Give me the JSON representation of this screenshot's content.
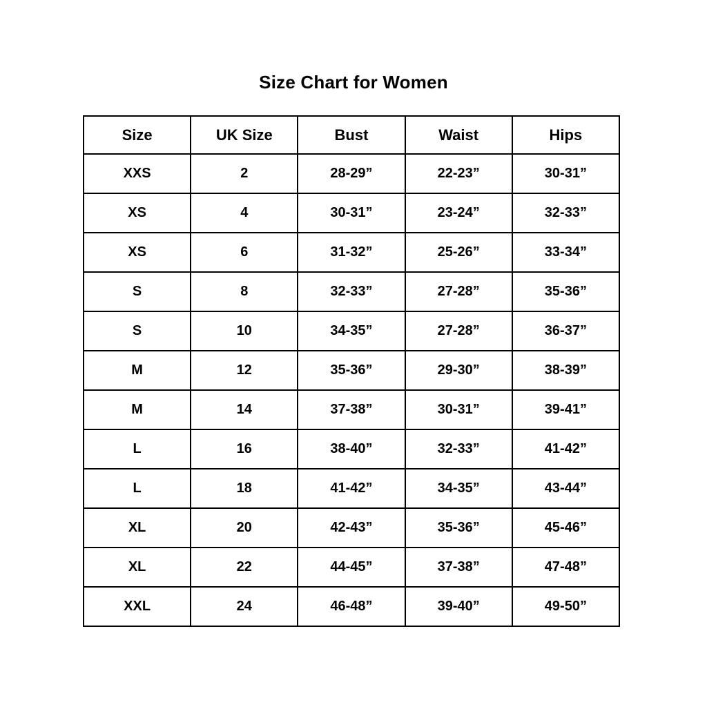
{
  "page": {
    "title": "Size Chart for Women"
  },
  "table": {
    "columns": [
      "Size",
      "UK Size",
      "Bust",
      "Waist",
      "Hips"
    ],
    "rows": [
      [
        "XXS",
        "2",
        "28-29”",
        "22-23”",
        "30-31”"
      ],
      [
        "XS",
        "4",
        "30-31”",
        "23-24”",
        "32-33”"
      ],
      [
        "XS",
        "6",
        "31-32”",
        "25-26”",
        "33-34”"
      ],
      [
        "S",
        "8",
        "32-33”",
        "27-28”",
        "35-36”"
      ],
      [
        "S",
        "10",
        "34-35”",
        "27-28”",
        "36-37”"
      ],
      [
        "M",
        "12",
        "35-36”",
        "29-30”",
        "38-39”"
      ],
      [
        "M",
        "14",
        "37-38”",
        "30-31”",
        "39-41”"
      ],
      [
        "L",
        "16",
        "38-40”",
        "32-33”",
        "41-42”"
      ],
      [
        "L",
        "18",
        "41-42”",
        "34-35”",
        "43-44”"
      ],
      [
        "XL",
        "20",
        "42-43”",
        "35-36”",
        "45-46”"
      ],
      [
        "XL",
        "22",
        "44-45”",
        "37-38”",
        "47-48”"
      ],
      [
        "XXL",
        "24",
        "46-48”",
        "39-40”",
        "49-50”"
      ]
    ]
  },
  "chart_data": {
    "type": "table",
    "title": "Size Chart for Women",
    "columns": [
      "Size",
      "UK Size",
      "Bust",
      "Waist",
      "Hips"
    ],
    "rows": [
      [
        "XXS",
        "2",
        "28-29”",
        "22-23”",
        "30-31”"
      ],
      [
        "XS",
        "4",
        "30-31”",
        "23-24”",
        "32-33”"
      ],
      [
        "XS",
        "6",
        "31-32”",
        "25-26”",
        "33-34”"
      ],
      [
        "S",
        "8",
        "32-33”",
        "27-28”",
        "35-36”"
      ],
      [
        "S",
        "10",
        "34-35”",
        "27-28”",
        "36-37”"
      ],
      [
        "M",
        "12",
        "35-36”",
        "29-30”",
        "38-39”"
      ],
      [
        "M",
        "14",
        "37-38”",
        "30-31”",
        "39-41”"
      ],
      [
        "L",
        "16",
        "38-40”",
        "32-33”",
        "41-42”"
      ],
      [
        "L",
        "18",
        "41-42”",
        "34-35”",
        "43-44”"
      ],
      [
        "XL",
        "20",
        "42-43”",
        "35-36”",
        "45-46”"
      ],
      [
        "XL",
        "22",
        "44-45”",
        "37-38”",
        "47-48”"
      ],
      [
        "XXL",
        "24",
        "46-48”",
        "39-40”",
        "49-50”"
      ]
    ]
  },
  "colors": {
    "background": "#ffffff",
    "text": "#000000",
    "border": "#000000"
  }
}
